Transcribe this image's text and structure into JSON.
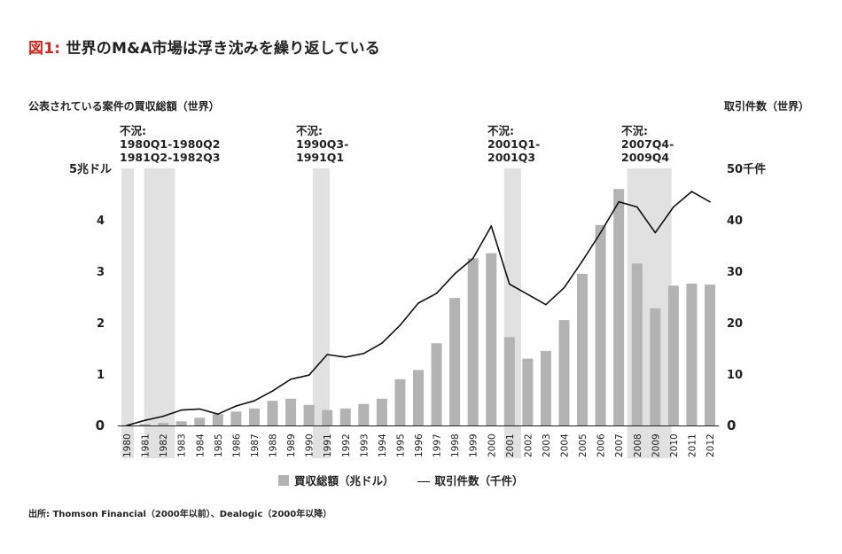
{
  "title": {
    "prefix": "図1:",
    "text": "世界のM&A市場は浮き沈みを繰り返している"
  },
  "left_axis_title": "公表されている案件の買収総額（世界）",
  "right_axis_title": "取引件数（世界）",
  "legend": {
    "bar": "買収総額（兆ドル）",
    "line": "取引件数（千件）"
  },
  "source": "出所: Thomson Financial（2000年以前）、Dealogic（2000年以降）",
  "recessions": [
    {
      "label1": "不況:",
      "label2": "1980Q1-1980Q2",
      "label3": "1981Q2-1982Q3"
    },
    {
      "label1": "不況:",
      "label2": "1990Q3-",
      "label3": "1991Q1"
    },
    {
      "label1": "不況:",
      "label2": "2001Q1-",
      "label3": "2001Q3"
    },
    {
      "label1": "不況:",
      "label2": "2007Q4-",
      "label3": "2009Q4"
    }
  ],
  "colors": {
    "bar": "#b3b3b3",
    "band": "#e1e1e1",
    "line": "#111111",
    "accent": "#d9261c"
  },
  "chart_data": {
    "type": "bar",
    "categories": [
      "1980",
      "1981",
      "1982",
      "1983",
      "1984",
      "1985",
      "1986",
      "1987",
      "1988",
      "1989",
      "1990",
      "1991",
      "1992",
      "1993",
      "1994",
      "1995",
      "1996",
      "1997",
      "1998",
      "1999",
      "2000",
      "2001",
      "2002",
      "2003",
      "2004",
      "2005",
      "2006",
      "2007",
      "2008",
      "2009",
      "2010",
      "2011",
      "2012"
    ],
    "series": [
      {
        "name": "買収総額（兆ドル）",
        "type": "bar",
        "axis": "left",
        "values": [
          0.01,
          0.03,
          0.05,
          0.08,
          0.15,
          0.22,
          0.27,
          0.33,
          0.48,
          0.52,
          0.4,
          0.3,
          0.33,
          0.42,
          0.52,
          0.9,
          1.08,
          1.6,
          2.48,
          3.25,
          3.35,
          1.72,
          1.3,
          1.45,
          2.05,
          2.95,
          3.9,
          4.6,
          3.15,
          2.28,
          2.72,
          2.76,
          2.74
        ]
      },
      {
        "name": "取引件数（千件）",
        "type": "line",
        "axis": "right",
        "values": [
          0,
          1,
          1.8,
          3,
          3.2,
          2.2,
          3.8,
          4.8,
          6.7,
          9,
          9.8,
          13.8,
          13.3,
          14,
          16,
          19.5,
          23.8,
          25.7,
          29.5,
          32.5,
          38.8,
          27.5,
          25.5,
          23.5,
          26.8,
          32,
          37.5,
          43.5,
          42.5,
          37.5,
          42.5,
          45.5,
          43.5
        ]
      }
    ],
    "left_axis": {
      "unit": "5兆ドル",
      "ticks": [
        "0",
        "1",
        "2",
        "3",
        "4"
      ],
      "ylim": [
        0,
        5
      ]
    },
    "right_axis": {
      "unit": "50千件",
      "ticks": [
        "0",
        "10",
        "20",
        "30",
        "40"
      ],
      "ylim": [
        0,
        50
      ]
    },
    "recession_bands": [
      {
        "from": 1980.0,
        "to": 1980.25
      },
      {
        "from": 1981.25,
        "to": 1982.5
      },
      {
        "from": 1990.5,
        "to": 1991.0
      },
      {
        "from": 2001.0,
        "to": 2001.5
      },
      {
        "from": 2007.75,
        "to": 2009.75
      }
    ],
    "grid": false
  }
}
